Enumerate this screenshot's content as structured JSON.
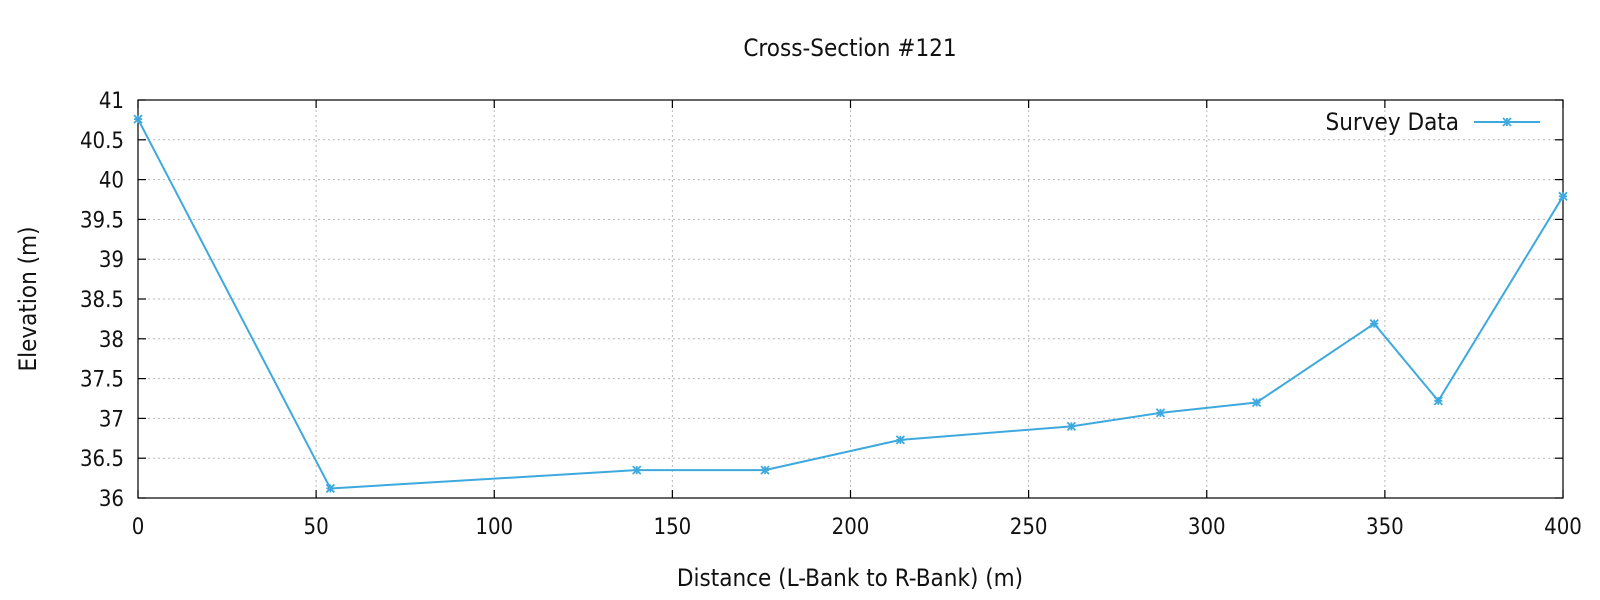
{
  "chart_data": {
    "type": "line",
    "title": "Cross-Section #121",
    "xlabel": "Distance (L-Bank to R-Bank) (m)",
    "ylabel": "Elevation (m)",
    "xlim": [
      0,
      400
    ],
    "ylim": [
      36,
      41
    ],
    "x_ticks": [
      0,
      50,
      100,
      150,
      200,
      250,
      300,
      350,
      400
    ],
    "x_tick_labels": [
      "0",
      "50",
      "100",
      "150",
      "200",
      "250",
      "300",
      "350",
      "400"
    ],
    "y_ticks": [
      36,
      36.5,
      37,
      37.5,
      38,
      38.5,
      39,
      39.5,
      40,
      40.5,
      41
    ],
    "y_tick_labels": [
      "36",
      "36.5",
      "37",
      "37.5",
      "38",
      "38.5",
      "39",
      "39.5",
      "40",
      "40.5",
      "41"
    ],
    "grid": true,
    "legend_position": "top-right",
    "series": [
      {
        "name": "Survey Data",
        "color": "#3ea9de",
        "marker": "asterisk",
        "x": [
          0,
          54,
          140,
          176,
          214,
          262,
          287,
          314,
          347,
          365,
          400
        ],
        "y": [
          40.76,
          36.12,
          36.35,
          36.35,
          36.73,
          36.9,
          37.07,
          37.2,
          38.19,
          37.22,
          39.79
        ]
      }
    ]
  }
}
